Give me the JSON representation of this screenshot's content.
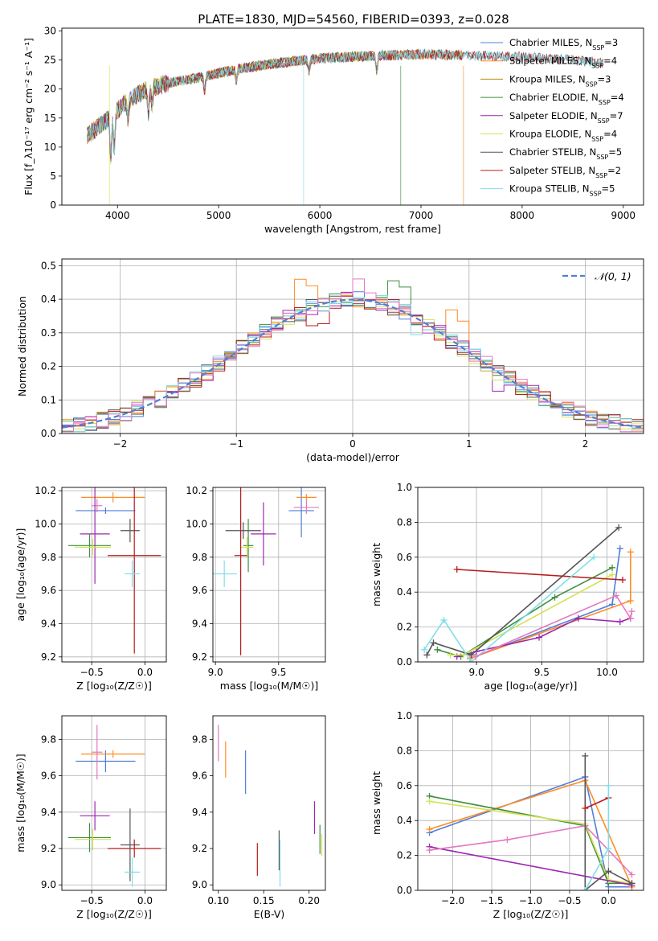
{
  "figure": {
    "title": "PLATE=1830, MJD=54560, FIBERID=0393, z=0.028"
  },
  "chart_data": [
    {
      "id": "spectrum",
      "type": "line",
      "xlabel": "wavelength [Angstrom, rest frame]",
      "ylabel": "Flux [f_λ10⁻¹⁷ erg cm⁻² s⁻¹ A⁻¹]",
      "xlim": [
        3450,
        9200
      ],
      "ylim": [
        0,
        30.5
      ],
      "xticks": [
        4000,
        5000,
        6000,
        7000,
        8000,
        9000
      ],
      "yticks": [
        0,
        5,
        10,
        15,
        20,
        25,
        30
      ],
      "grid": false,
      "legend_position": "right",
      "continuum": {
        "x": [
          3700,
          3850,
          3950,
          4100,
          4300,
          4500,
          4800,
          5200,
          5600,
          6000,
          6500,
          7000,
          7500,
          8000,
          8500,
          8800
        ],
        "y": [
          12,
          14,
          15.5,
          18,
          20,
          21,
          22,
          23.5,
          24.5,
          25.3,
          25.7,
          26,
          25.8,
          25.5,
          25,
          24.5
        ]
      },
      "series": [
        {
          "name": "Chabrier MILES, N_SSP=3",
          "color": "#4f7fd9",
          "xmax": 7412,
          "drop": null
        },
        {
          "name": "Salpeter MILES, N_SSP=4",
          "color": "#ff8c24",
          "xmax": 7412,
          "drop": 7420
        },
        {
          "name": "Kroupa MILES, N_SSP=3",
          "color": "#b8860b",
          "xmax": 7412,
          "drop": null
        },
        {
          "name": "Chabrier ELODIE, N_SSP=4",
          "color": "#3f8f3f",
          "xmax": 6800,
          "drop": 6800
        },
        {
          "name": "Salpeter ELODIE, N_SSP=7",
          "color": "#9c27b0",
          "xmax": 6800,
          "drop": null
        },
        {
          "name": "Kroupa ELODIE, N_SSP=4",
          "color": "#d4e157",
          "xmax": 6800,
          "drop": 3920
        },
        {
          "name": "Chabrier STELIB, N_SSP=5",
          "color": "#555555",
          "xmax": 8800,
          "drop": null
        },
        {
          "name": "Salpeter STELIB, N_SSP=2",
          "color": "#b71c1c",
          "xmax": 8800,
          "drop": null
        },
        {
          "name": "Kroupa STELIB, N_SSP=5",
          "color": "#80deea",
          "xmax": 8800,
          "drop": 5840
        }
      ]
    },
    {
      "id": "residuals",
      "type": "histogram",
      "xlabel": "(data-model)/error",
      "ylabel": "Normed distribution",
      "xlim": [
        -2.5,
        2.5
      ],
      "ylim": [
        0,
        0.52
      ],
      "xticks": [
        -2,
        -1,
        0,
        1,
        2
      ],
      "yticks": [
        0.0,
        0.1,
        0.2,
        0.3,
        0.4,
        0.5
      ],
      "grid": true,
      "legend": "𝒩(0, 1)",
      "legend_position": "top-right",
      "normal_color": "#4f7fd9",
      "bin_width": 0.1,
      "series_colors": [
        "#4f7fd9",
        "#ff8c24",
        "#3f8f3f",
        "#9c27b0",
        "#d4e157",
        "#555555",
        "#b71c1c",
        "#80deea",
        "#e377c2"
      ],
      "bumps": [
        {
          "series": 1,
          "x": -0.45,
          "dy": 0.08
        },
        {
          "series": 1,
          "x": 0.95,
          "dy": 0.07
        },
        {
          "series": 2,
          "x": 0.45,
          "dy": 0.09
        },
        {
          "series": 8,
          "x": 0.05,
          "dy": 0.05
        },
        {
          "series": 3,
          "x": 1.25,
          "dy": -0.04
        },
        {
          "series": 6,
          "x": -0.3,
          "dy": -0.05
        },
        {
          "series": 7,
          "x": 0.55,
          "dy": -0.06
        }
      ]
    },
    {
      "id": "age_vs_Z",
      "type": "errorbar",
      "xlabel": "Z [log₁₀(Z/Z☉)]",
      "ylabel": "age  [log₁₀(age/yr)]",
      "xlim": [
        -0.78,
        0.2
      ],
      "ylim": [
        9.17,
        10.22
      ],
      "xticks": [
        -0.5,
        0.0
      ],
      "yticks": [
        9.2,
        9.4,
        9.6,
        9.8,
        10.0,
        10.2
      ],
      "grid": true,
      "points": [
        {
          "color": "#4f7fd9",
          "x": -0.37,
          "xerr": 0.28,
          "y": 10.08,
          "yerr": 0.02
        },
        {
          "color": "#ff8c24",
          "x": -0.3,
          "xerr": 0.3,
          "y": 10.16,
          "yerr": 0.03
        },
        {
          "color": "#e377c2",
          "x": -0.45,
          "xerr": 0.05,
          "y": 10.11,
          "yerr": 0.04
        },
        {
          "color": "#9c27b0",
          "x": -0.47,
          "xerr": 0.14,
          "y": 9.94,
          "yerr": 0.3
        },
        {
          "color": "#3f8f3f",
          "x": -0.52,
          "xerr": 0.2,
          "y": 9.87,
          "yerr": 0.07
        },
        {
          "color": "#d4e157",
          "x": -0.49,
          "xerr": 0.17,
          "y": 9.86,
          "yerr": 0.05
        },
        {
          "color": "#555555",
          "x": -0.14,
          "xerr": 0.09,
          "y": 9.96,
          "yerr": 0.07
        },
        {
          "color": "#b71c1c",
          "x": -0.1,
          "xerr": 0.25,
          "y": 9.81,
          "yerr": 0.59
        },
        {
          "color": "#80deea",
          "x": -0.12,
          "xerr": 0.07,
          "y": 9.7,
          "yerr": 0.08
        }
      ]
    },
    {
      "id": "age_vs_mass",
      "type": "errorbar",
      "xlabel": "mass [log₁₀(M/M☉)]",
      "ylabel": "",
      "xlim": [
        8.98,
        9.87
      ],
      "ylim": [
        9.17,
        10.22
      ],
      "xticks": [
        9.0,
        9.5
      ],
      "yticks": [
        9.2,
        9.4,
        9.6,
        9.8,
        10.0,
        10.2
      ],
      "grid": true,
      "points": [
        {
          "color": "#4f7fd9",
          "x": 9.68,
          "xerr": 0.1,
          "y": 10.08,
          "yerr": 0.16
        },
        {
          "color": "#ff8c24",
          "x": 9.72,
          "xerr": 0.08,
          "y": 10.16,
          "yerr": 0.02
        },
        {
          "color": "#e377c2",
          "x": 9.72,
          "xerr": 0.1,
          "y": 10.1,
          "yerr": 0.04
        },
        {
          "color": "#9c27b0",
          "x": 9.38,
          "xerr": 0.1,
          "y": 9.94,
          "yerr": 0.19
        },
        {
          "color": "#3f8f3f",
          "x": 9.26,
          "xerr": 0.04,
          "y": 9.87,
          "yerr": 0.16
        },
        {
          "color": "#d4e157",
          "x": 9.25,
          "xerr": 0.05,
          "y": 9.86,
          "yerr": 0.06
        },
        {
          "color": "#555555",
          "x": 9.22,
          "xerr": 0.14,
          "y": 9.96,
          "yerr": 0.05
        },
        {
          "color": "#b71c1c",
          "x": 9.2,
          "xerr": 0.05,
          "y": 9.81,
          "yerr": 0.6
        },
        {
          "color": "#80deea",
          "x": 9.07,
          "xerr": 0.1,
          "y": 9.7,
          "yerr": 0.08
        }
      ]
    },
    {
      "id": "mass_weight_vs_age",
      "type": "line",
      "xlabel": "age  [log₁₀(age/yr)]",
      "ylabel": "mass weight",
      "xlim": [
        8.55,
        10.28
      ],
      "ylim": [
        0,
        1.0
      ],
      "xticks": [
        9.0,
        9.5,
        10.0
      ],
      "yticks": [
        0.0,
        0.2,
        0.4,
        0.6,
        0.8,
        1.0
      ],
      "grid": true,
      "series": [
        {
          "color": "#4f7fd9",
          "x": [
            8.95,
            10.04,
            10.1
          ],
          "y": [
            0.02,
            0.33,
            0.65
          ]
        },
        {
          "color": "#ff8c24",
          "x": [
            8.95,
            10.18,
            10.18
          ],
          "y": [
            0.02,
            0.35,
            0.63
          ]
        },
        {
          "color": "#3f8f3f",
          "x": [
            8.7,
            8.88,
            9.6,
            10.04
          ],
          "y": [
            0.07,
            0.03,
            0.37,
            0.54
          ]
        },
        {
          "color": "#9c27b0",
          "x": [
            8.85,
            9.0,
            9.48,
            9.78,
            10.1,
            10.18
          ],
          "y": [
            0.03,
            0.06,
            0.14,
            0.25,
            0.23,
            0.25
          ]
        },
        {
          "color": "#d4e157",
          "x": [
            8.8,
            8.9,
            10.04
          ],
          "y": [
            0.04,
            0.04,
            0.5
          ]
        },
        {
          "color": "#555555",
          "x": [
            8.62,
            8.67,
            8.96,
            10.09
          ],
          "y": [
            0.04,
            0.11,
            0.04,
            0.77
          ]
        },
        {
          "color": "#b71c1c",
          "x": [
            8.85,
            10.12
          ],
          "y": [
            0.53,
            0.47
          ]
        },
        {
          "color": "#80deea",
          "x": [
            8.6,
            8.75,
            8.96,
            9.9
          ],
          "y": [
            0.07,
            0.24,
            0.0,
            0.6
          ]
        },
        {
          "color": "#e377c2",
          "x": [
            8.99,
            10.07,
            10.18,
            10.19
          ],
          "y": [
            0.03,
            0.38,
            0.25,
            0.29
          ]
        }
      ]
    },
    {
      "id": "mass_vs_Z",
      "type": "errorbar",
      "xlabel": "Z [log₁₀(Z/Z☉)]",
      "ylabel": "mass [log₁₀(M/M☉)]",
      "xlim": [
        -0.78,
        0.2
      ],
      "ylim": [
        8.97,
        9.93
      ],
      "xticks": [
        -0.5,
        0.0
      ],
      "yticks": [
        9.0,
        9.2,
        9.4,
        9.6,
        9.8
      ],
      "grid": true,
      "points": [
        {
          "color": "#4f7fd9",
          "x": -0.37,
          "xerr": 0.28,
          "y": 9.68,
          "yerr": 0.06
        },
        {
          "color": "#ff8c24",
          "x": -0.3,
          "xerr": 0.3,
          "y": 9.72,
          "yerr": 0.02
        },
        {
          "color": "#e377c2",
          "x": -0.45,
          "xerr": 0.05,
          "y": 9.73,
          "yerr": 0.15
        },
        {
          "color": "#9c27b0",
          "x": -0.47,
          "xerr": 0.14,
          "y": 9.38,
          "yerr": 0.08
        },
        {
          "color": "#3f8f3f",
          "x": -0.52,
          "xerr": 0.2,
          "y": 9.26,
          "yerr": 0.08
        },
        {
          "color": "#d4e157",
          "x": -0.49,
          "xerr": 0.17,
          "y": 9.25,
          "yerr": 0.06
        },
        {
          "color": "#555555",
          "x": -0.14,
          "xerr": 0.09,
          "y": 9.22,
          "yerr": 0.2
        },
        {
          "color": "#b71c1c",
          "x": -0.1,
          "xerr": 0.25,
          "y": 9.2,
          "yerr": 0.05
        },
        {
          "color": "#80deea",
          "x": -0.12,
          "xerr": 0.07,
          "y": 9.07,
          "yerr": 0.08
        }
      ]
    },
    {
      "id": "mass_vs_ebv",
      "type": "errorbar",
      "xlabel": "E(B-V)",
      "ylabel": "",
      "xlim": [
        0.094,
        0.218
      ],
      "ylim": [
        8.97,
        9.93
      ],
      "xticks": [
        0.1,
        0.15,
        0.2
      ],
      "yticks": [
        9.0,
        9.2,
        9.4,
        9.6,
        9.8
      ],
      "grid": false,
      "points": [
        {
          "color": "#e377c2",
          "x": 0.1,
          "xerr": 0,
          "y": 9.78,
          "yerr": 0.1
        },
        {
          "color": "#ff8c24",
          "x": 0.108,
          "xerr": 0,
          "y": 9.69,
          "yerr": 0.1
        },
        {
          "color": "#4f7fd9",
          "x": 0.13,
          "xerr": 0,
          "y": 9.62,
          "yerr": 0.12
        },
        {
          "color": "#b71c1c",
          "x": 0.143,
          "xerr": 0,
          "y": 9.14,
          "yerr": 0.09
        },
        {
          "color": "#555555",
          "x": 0.167,
          "xerr": 0,
          "y": 9.19,
          "yerr": 0.11
        },
        {
          "color": "#80deea",
          "x": 0.168,
          "xerr": 0,
          "y": 9.12,
          "yerr": 0.13
        },
        {
          "color": "#9c27b0",
          "x": 0.206,
          "xerr": 0,
          "y": 9.37,
          "yerr": 0.09
        },
        {
          "color": "#3f8f3f",
          "x": 0.212,
          "xerr": 0,
          "y": 9.25,
          "yerr": 0.08
        },
        {
          "color": "#d4e157",
          "x": 0.214,
          "xerr": 0,
          "y": 9.22,
          "yerr": 0.06
        }
      ]
    },
    {
      "id": "mass_weight_vs_Z",
      "type": "line",
      "xlabel": "Z [log₁₀(Z/Z☉)]",
      "ylabel": "mass weight",
      "xlim": [
        -2.45,
        0.45
      ],
      "ylim": [
        0,
        1.0
      ],
      "xticks": [
        -2.0,
        -1.5,
        -1.0,
        -0.5,
        0.0
      ],
      "yticks": [
        0.0,
        0.2,
        0.4,
        0.6,
        0.8,
        1.0
      ],
      "grid": true,
      "series": [
        {
          "color": "#4f7fd9",
          "x": [
            -2.3,
            -0.3,
            0.0,
            0.3
          ],
          "y": [
            0.33,
            0.65,
            0.02,
            0.02
          ]
        },
        {
          "color": "#ff8c24",
          "x": [
            -2.3,
            -0.3,
            0.3
          ],
          "y": [
            0.35,
            0.63,
            0.02
          ]
        },
        {
          "color": "#3f8f3f",
          "x": [
            -2.3,
            -0.3,
            0.0,
            0.3
          ],
          "y": [
            0.54,
            0.37,
            0.04,
            0.04
          ]
        },
        {
          "color": "#d4e157",
          "x": [
            -2.3,
            -0.3,
            0.0,
            0.3
          ],
          "y": [
            0.51,
            0.38,
            0.06,
            0.04
          ]
        },
        {
          "color": "#9c27b0",
          "x": [
            -2.3,
            0.3
          ],
          "y": [
            0.25,
            0.03
          ]
        },
        {
          "color": "#e377c2",
          "x": [
            -2.3,
            -1.3,
            -0.3,
            0.3
          ],
          "y": [
            0.23,
            0.29,
            0.37,
            0.09
          ]
        },
        {
          "color": "#555555",
          "x": [
            -0.3,
            -0.3,
            0.0,
            0.3
          ],
          "y": [
            0.77,
            0.0,
            0.11,
            0.04
          ]
        },
        {
          "color": "#b71c1c",
          "x": [
            -0.3,
            0.0
          ],
          "y": [
            0.47,
            0.53
          ]
        },
        {
          "color": "#80deea",
          "x": [
            -0.3,
            0.0,
            0.0
          ],
          "y": [
            0.0,
            0.24,
            0.6
          ]
        }
      ]
    }
  ]
}
